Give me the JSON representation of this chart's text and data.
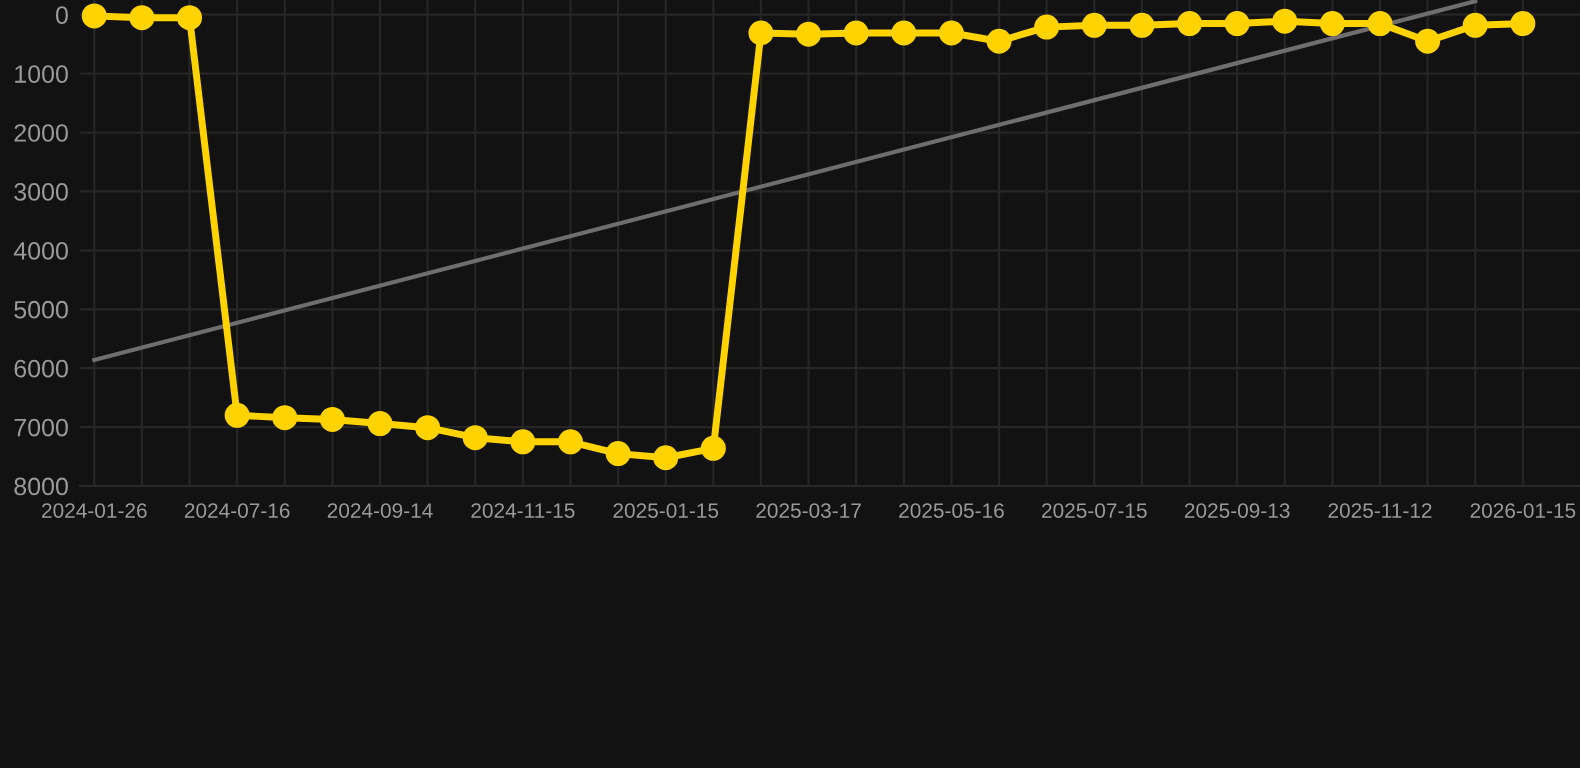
{
  "chart_data": {
    "type": "line",
    "categories": [
      "2024-01-26",
      null,
      null,
      "2024-07-16",
      null,
      null,
      "2024-09-14",
      null,
      null,
      "2024-11-15",
      null,
      null,
      "2025-01-15",
      null,
      null,
      "2025-03-17",
      null,
      null,
      "2025-05-16",
      null,
      null,
      "2025-07-15",
      null,
      null,
      "2025-09-13",
      null,
      null,
      "2025-11-12",
      null,
      null,
      "2026-01-15"
    ],
    "series": [
      {
        "color": "#ffd300",
        "marker": "circle",
        "values": [
          20,
          50,
          50,
          6800,
          6840,
          6870,
          6940,
          7010,
          7180,
          7250,
          7250,
          7450,
          7520,
          7360,
          310,
          330,
          310,
          310,
          310,
          450,
          210,
          180,
          180,
          150,
          150,
          110,
          150,
          150,
          450,
          180,
          150
        ]
      },
      {
        "color": "#6e6e6e",
        "marker": "none",
        "values": [
          5860,
          null,
          null,
          null,
          null,
          null,
          null,
          null,
          null,
          null,
          null,
          null,
          null,
          null,
          null,
          null,
          null,
          null,
          null,
          null,
          null,
          null,
          null,
          null,
          null,
          null,
          null,
          null,
          null,
          -230,
          null
        ]
      }
    ],
    "ylim": [
      8000,
      -250
    ],
    "yticks": [
      0,
      1000,
      2000,
      3000,
      4000,
      5000,
      6000,
      7000,
      8000
    ],
    "grid": true,
    "legend": false
  }
}
